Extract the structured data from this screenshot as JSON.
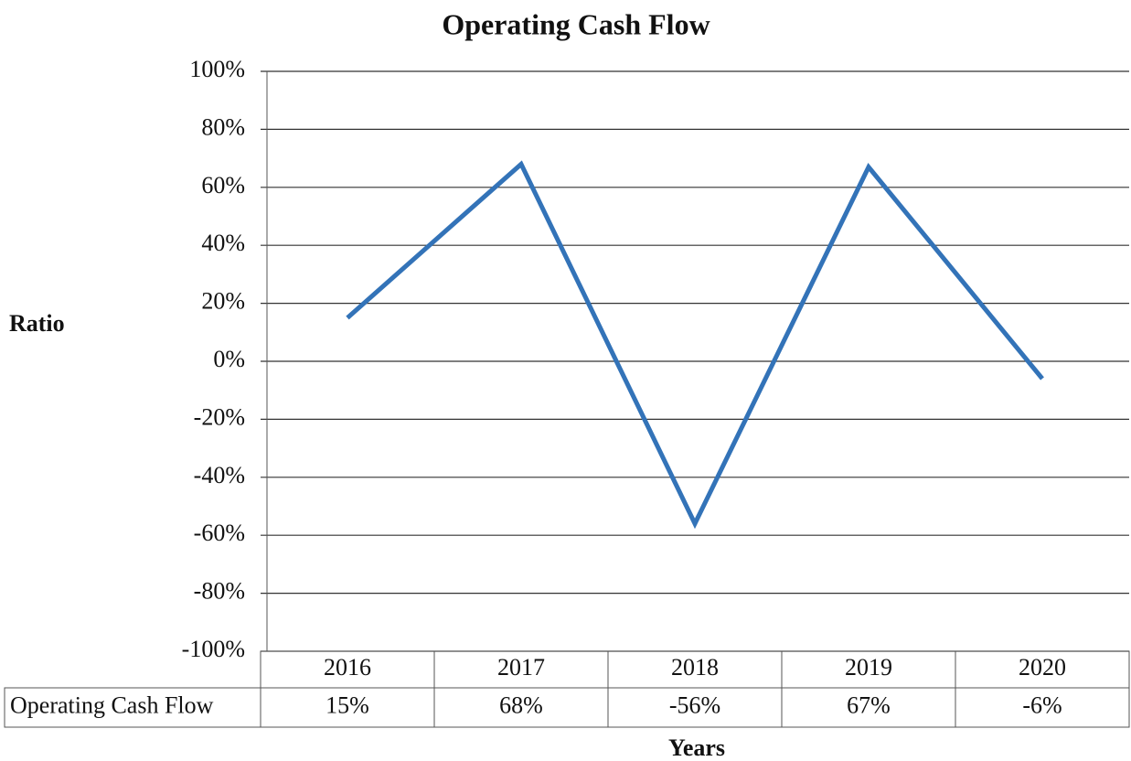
{
  "chart_data": {
    "type": "line",
    "title": "Operating Cash Flow",
    "y_label": "Ratio",
    "x_label": "Years",
    "categories": [
      "2016",
      "2017",
      "2018",
      "2019",
      "2020"
    ],
    "series": [
      {
        "name": "Operating Cash Flow",
        "color": "#3373b8",
        "values": [
          15,
          68,
          -56,
          67,
          -6
        ],
        "value_labels": [
          "15%",
          "68%",
          "-56%",
          "67%",
          "-6%"
        ]
      }
    ],
    "ylim": [
      -100,
      100
    ],
    "yticks": [
      {
        "value": -100,
        "label": "-100%"
      },
      {
        "value": -80,
        "label": "-80%"
      },
      {
        "value": -60,
        "label": "-60%"
      },
      {
        "value": -40,
        "label": "-40%"
      },
      {
        "value": -20,
        "label": "-20%"
      },
      {
        "value": 0,
        "label": "0%"
      },
      {
        "value": 20,
        "label": "20%"
      },
      {
        "value": 40,
        "label": "40%"
      },
      {
        "value": 60,
        "label": "60%"
      },
      {
        "value": 80,
        "label": "80%"
      },
      {
        "value": 100,
        "label": "100%"
      }
    ],
    "grid": true
  }
}
